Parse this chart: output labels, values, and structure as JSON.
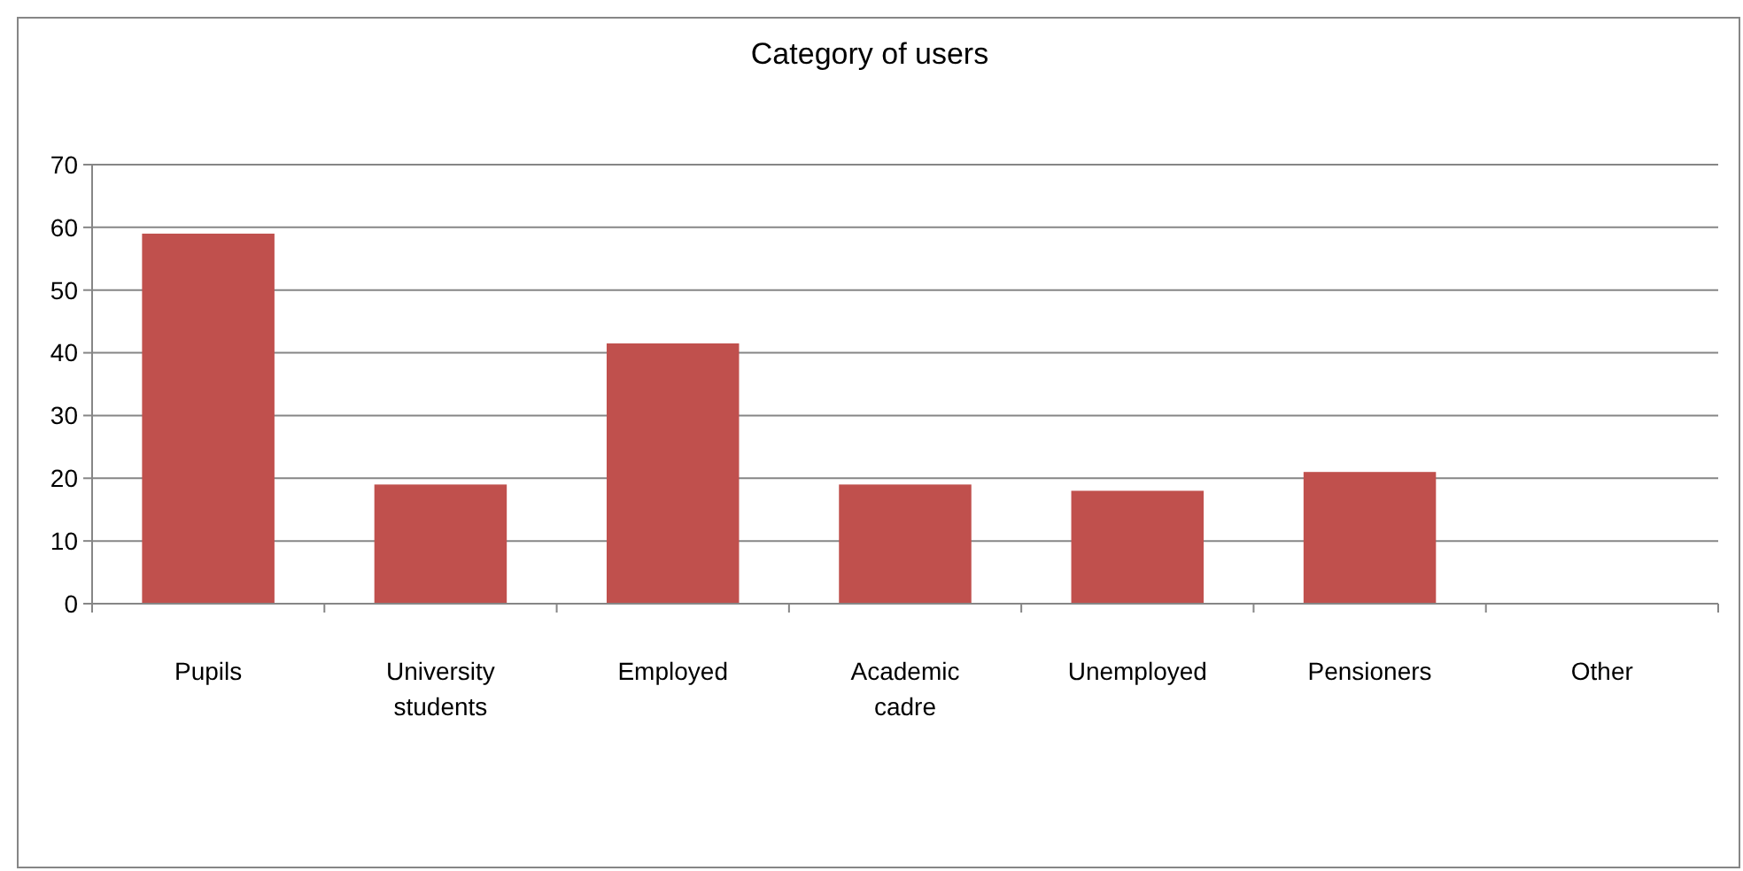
{
  "chart_data": {
    "type": "bar",
    "title": "Category of users",
    "categories": [
      "Pupils",
      "University students",
      "Employed",
      "Academic cadre",
      "Unemployed",
      "Pensioners",
      "Other"
    ],
    "values": [
      59,
      19,
      41.5,
      19,
      18,
      21,
      0
    ],
    "color": "#c0504d",
    "ylim": [
      0,
      70
    ],
    "yticks": [
      0,
      10,
      20,
      30,
      40,
      50,
      60,
      70
    ],
    "grid": "y"
  }
}
